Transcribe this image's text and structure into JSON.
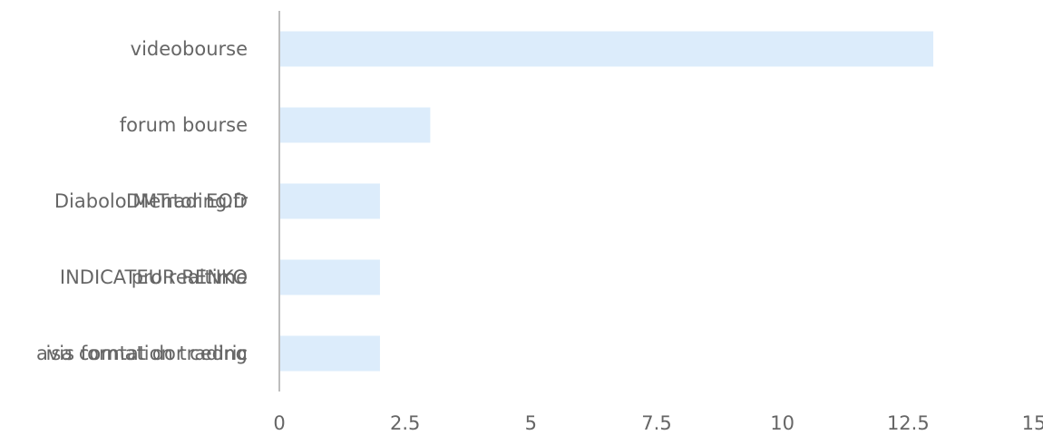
{
  "chart_data": {
    "type": "bar",
    "orientation": "horizontal",
    "rows": [
      {
        "labels": [
          "videobourse"
        ],
        "value": 13
      },
      {
        "labels": [
          "forum bourse"
        ],
        "value": 3
      },
      {
        "labels": [
          "Diabolo Mentor EOD",
          "DMTrading.fr"
        ],
        "value": 2
      },
      {
        "labels": [
          "INDICATEUR RENKO",
          "pro realtime"
        ],
        "value": 2
      },
      {
        "labels": [
          "avis formation trading",
          "isa comtat dor cedric"
        ],
        "value": 2
      }
    ],
    "xlim": [
      0,
      15
    ],
    "xticks": [
      "0",
      "2.5",
      "5",
      "7.5",
      "10",
      "12.5",
      "15"
    ],
    "bar_color": "#dcecfb",
    "axis_color": "#bdbdbd",
    "grid": false,
    "legend": "none"
  }
}
